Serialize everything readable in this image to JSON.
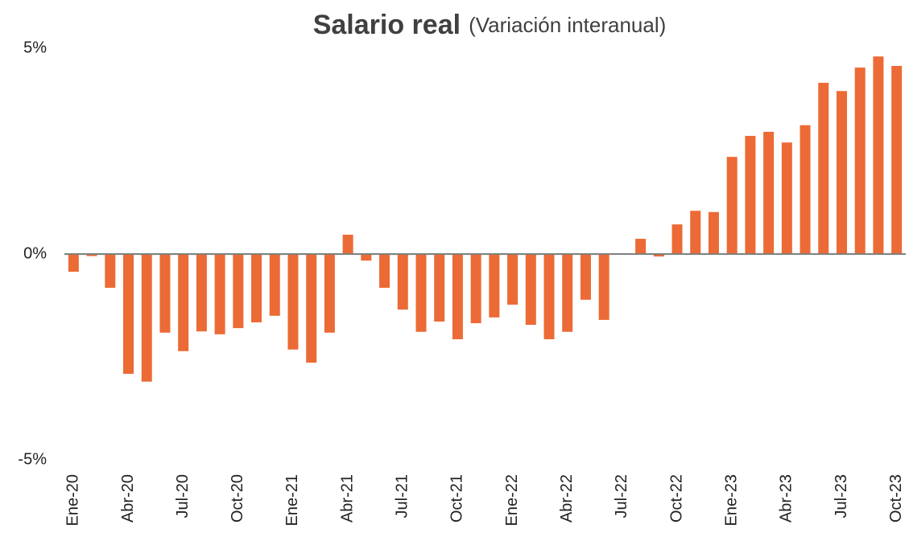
{
  "chart_data": {
    "type": "bar",
    "title": "Salario real",
    "subtitle": "(Variación interanual)",
    "categories": [
      "Ene-20",
      null,
      null,
      "Abr-20",
      null,
      null,
      "Jul-20",
      null,
      null,
      "Oct-20",
      null,
      null,
      "Ene-21",
      null,
      null,
      "Abr-21",
      null,
      null,
      "Jul-21",
      null,
      null,
      "Oct-21",
      null,
      null,
      "Ene-22",
      null,
      null,
      "Abr-22",
      null,
      null,
      "Jul-22",
      null,
      null,
      "Oct-22",
      null,
      null,
      "Ene-23",
      null,
      null,
      "Abr-23",
      null,
      null,
      "Jul-23",
      null,
      null,
      "Oct-23"
    ],
    "values": [
      -0.43,
      -0.05,
      -0.82,
      -2.91,
      -3.1,
      -1.91,
      -2.36,
      -1.88,
      -1.95,
      -1.8,
      -1.66,
      -1.5,
      -2.32,
      -2.64,
      -1.91,
      0.47,
      -0.16,
      -0.82,
      -1.35,
      -1.89,
      -1.64,
      -2.07,
      -1.68,
      -1.54,
      -1.23,
      -1.72,
      -2.07,
      -1.89,
      -1.11,
      -1.6,
      0,
      0.37,
      -0.06,
      0.72,
      1.05,
      1.02,
      2.36,
      2.87,
      2.97,
      2.71,
      3.13,
      4.16,
      3.96,
      4.53,
      4.8,
      4.57
    ],
    "color": "#ec6a35",
    "ylim": [
      -5,
      5
    ],
    "yticks": [
      {
        "value": -5,
        "label": "-5%"
      },
      {
        "value": 0,
        "label": "0%"
      },
      {
        "value": 5,
        "label": "5%"
      }
    ],
    "grid": false
  }
}
